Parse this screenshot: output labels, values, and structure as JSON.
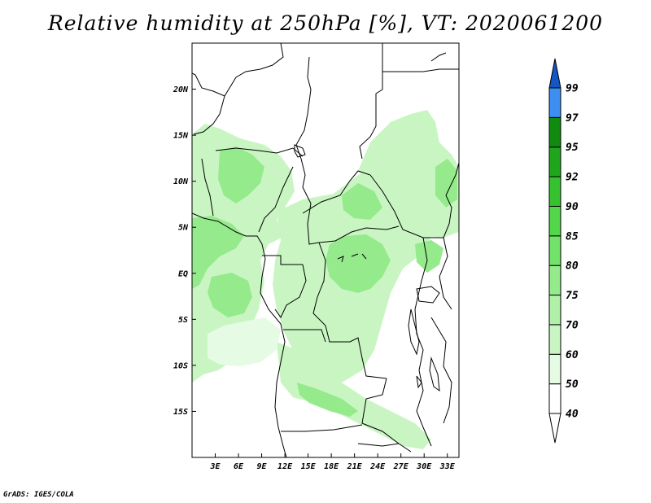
{
  "title": "Relative humidity at 250hPa [%], VT: 2020061200",
  "credit": "GrADS: IGES/COLA",
  "map": {
    "lon_range": [
      0,
      34.5
    ],
    "lat_range": [
      -20,
      25
    ],
    "lat_ticks": [
      {
        "value": 20,
        "label": "20N"
      },
      {
        "value": 15,
        "label": "15N"
      },
      {
        "value": 10,
        "label": "10N"
      },
      {
        "value": 5,
        "label": "5N"
      },
      {
        "value": 0,
        "label": "EQ"
      },
      {
        "value": -5,
        "label": "5S"
      },
      {
        "value": -10,
        "label": "10S"
      },
      {
        "value": -15,
        "label": "15S"
      }
    ],
    "lon_ticks": [
      {
        "value": 3,
        "label": "3E"
      },
      {
        "value": 6,
        "label": "6E"
      },
      {
        "value": 9,
        "label": "9E"
      },
      {
        "value": 12,
        "label": "12E"
      },
      {
        "value": 15,
        "label": "15E"
      },
      {
        "value": 18,
        "label": "18E"
      },
      {
        "value": 21,
        "label": "21E"
      },
      {
        "value": 24,
        "label": "24E"
      },
      {
        "value": 27,
        "label": "27E"
      },
      {
        "value": 30,
        "label": "30E"
      },
      {
        "value": 33,
        "label": "33E"
      }
    ]
  },
  "colorbar": {
    "levels": [
      {
        "label": "40",
        "color": "#ffffff"
      },
      {
        "label": "50",
        "color": "#e6fbe3"
      },
      {
        "label": "60",
        "color": "#c9f5c3"
      },
      {
        "label": "70",
        "color": "#b0f0a8"
      },
      {
        "label": "75",
        "color": "#95ea8c"
      },
      {
        "label": "80",
        "color": "#72e26a"
      },
      {
        "label": "85",
        "color": "#52d64a"
      },
      {
        "label": "90",
        "color": "#36c22f"
      },
      {
        "label": "92",
        "color": "#20a61c"
      },
      {
        "label": "95",
        "color": "#118a10"
      },
      {
        "label": "97",
        "color": "#3c8ff0"
      },
      {
        "label": "99",
        "color": "#1a6fdc"
      }
    ],
    "top_arrow_color": "#1357c4"
  },
  "colors": {
    "light_green": "#c9f5c3",
    "mid_green": "#95ea8c",
    "border": "#000000"
  }
}
